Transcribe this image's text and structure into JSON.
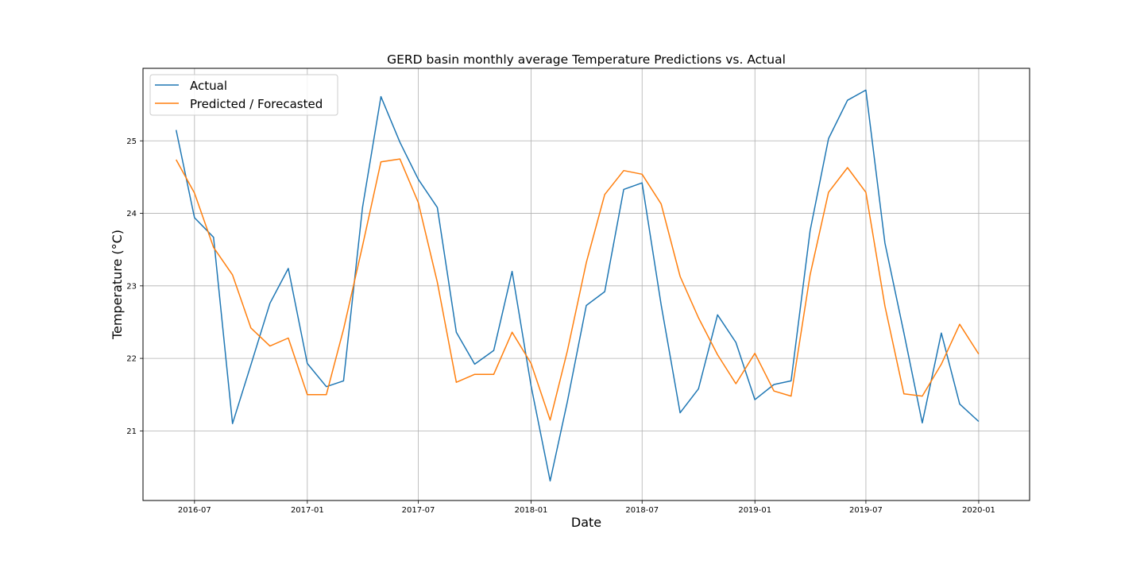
{
  "chart_data": {
    "type": "line",
    "title": "GERD basin monthly average Temperature Predictions vs. Actual",
    "xlabel": "Date",
    "ylabel": "Temperature (°C)",
    "grid": true,
    "legend_position": "top-left",
    "x": [
      "2016-06",
      "2016-07",
      "2016-08",
      "2016-09",
      "2016-10",
      "2016-11",
      "2016-12",
      "2017-01",
      "2017-02",
      "2017-03",
      "2017-04",
      "2017-05",
      "2017-06",
      "2017-07",
      "2017-08",
      "2017-09",
      "2017-10",
      "2017-11",
      "2017-12",
      "2018-01",
      "2018-02",
      "2018-03",
      "2018-04",
      "2018-05",
      "2018-06",
      "2018-07",
      "2018-08",
      "2018-09",
      "2018-10",
      "2018-11",
      "2018-12",
      "2019-01",
      "2019-02",
      "2019-03",
      "2019-04",
      "2019-05",
      "2019-06",
      "2019-07",
      "2019-08",
      "2019-09",
      "2019-10",
      "2019-11",
      "2019-12",
      "2020-01"
    ],
    "x_ticks": [
      "2016-07",
      "2017-01",
      "2017-07",
      "2018-01",
      "2018-07",
      "2019-01",
      "2019-07",
      "2020-01"
    ],
    "y_ticks": [
      21,
      22,
      23,
      24,
      25
    ],
    "xlim": [
      "2016-04-08",
      "2020-03-24"
    ],
    "ylim": [
      20.04,
      26.0
    ],
    "series": [
      {
        "name": "Actual",
        "color": "#1f77b4",
        "values": [
          25.15,
          23.94,
          23.67,
          21.1,
          21.91,
          22.76,
          23.24,
          21.93,
          21.61,
          21.69,
          24.08,
          25.61,
          24.98,
          24.47,
          24.08,
          22.36,
          21.92,
          22.11,
          23.2,
          21.62,
          20.31,
          21.4,
          22.73,
          22.92,
          24.33,
          24.42,
          22.74,
          21.25,
          21.58,
          22.6,
          22.22,
          21.43,
          21.64,
          21.69,
          23.76,
          25.03,
          25.56,
          25.7,
          23.59,
          22.35,
          21.11,
          22.35,
          21.37,
          21.13
        ]
      },
      {
        "name": "Predicted / Forecasted",
        "color": "#ff7f0e",
        "values": [
          24.74,
          24.28,
          23.53,
          23.15,
          22.42,
          22.17,
          22.28,
          21.5,
          21.5,
          22.4,
          23.55,
          24.71,
          24.75,
          24.15,
          23.05,
          21.67,
          21.78,
          21.78,
          22.36,
          21.93,
          21.15,
          22.1,
          23.32,
          24.26,
          24.59,
          24.54,
          24.13,
          23.13,
          22.56,
          22.05,
          21.65,
          22.07,
          21.55,
          21.48,
          23.15,
          24.29,
          24.63,
          24.29,
          22.72,
          21.51,
          21.48,
          21.92,
          22.47,
          22.06
        ]
      }
    ]
  }
}
